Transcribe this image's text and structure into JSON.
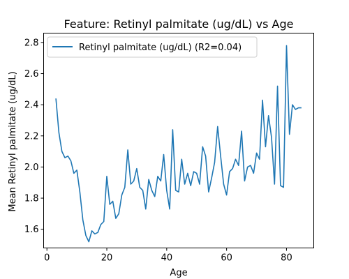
{
  "chart_data": {
    "type": "line",
    "title": "Feature: Retinyl palmitate (ug/dL) vs Age",
    "xlabel": "Age",
    "ylabel": "Mean Retinyl palmitate (ug/dL)",
    "xlim": [
      -1.1,
      89.1
    ],
    "ylim": [
      1.48,
      2.86
    ],
    "xticks": [
      0,
      20,
      40,
      60,
      80
    ],
    "yticks": [
      1.6,
      1.8,
      2.0,
      2.2,
      2.4,
      2.6,
      2.8
    ],
    "ytick_labels": [
      "1.6",
      "1.8",
      "2.0",
      "2.2",
      "2.4",
      "2.6",
      "2.8"
    ],
    "grid": false,
    "legend_position": "top-left",
    "color": "#1f77b4",
    "series": [
      {
        "name": "Retinyl palmitate (ug/dL) (R2=0.04)",
        "x": [
          3,
          4,
          5,
          6,
          7,
          8,
          9,
          10,
          11,
          12,
          13,
          14,
          15,
          16,
          17,
          18,
          19,
          20,
          21,
          22,
          23,
          24,
          25,
          26,
          27,
          28,
          29,
          30,
          31,
          32,
          33,
          34,
          35,
          36,
          37,
          38,
          39,
          40,
          41,
          42,
          43,
          44,
          45,
          46,
          47,
          48,
          49,
          50,
          51,
          52,
          53,
          54,
          55,
          56,
          57,
          58,
          59,
          60,
          61,
          62,
          63,
          64,
          65,
          66,
          67,
          68,
          69,
          70,
          71,
          72,
          73,
          74,
          75,
          76,
          77,
          78,
          79,
          80,
          81,
          82,
          83,
          84,
          85
        ],
        "y": [
          2.44,
          2.22,
          2.1,
          2.06,
          2.07,
          2.04,
          1.96,
          1.98,
          1.84,
          1.66,
          1.56,
          1.52,
          1.59,
          1.57,
          1.58,
          1.63,
          1.65,
          1.94,
          1.76,
          1.78,
          1.67,
          1.7,
          1.82,
          1.87,
          2.11,
          1.89,
          1.91,
          1.99,
          1.87,
          1.85,
          1.73,
          1.92,
          1.85,
          1.81,
          1.94,
          1.91,
          2.08,
          1.85,
          1.73,
          2.24,
          1.85,
          1.84,
          2.05,
          1.89,
          1.96,
          1.88,
          1.97,
          1.96,
          1.89,
          2.13,
          2.07,
          1.84,
          1.93,
          2.03,
          2.26,
          2.07,
          1.89,
          1.82,
          1.97,
          1.99,
          2.05,
          2.01,
          2.23,
          1.91,
          2.0,
          2.01,
          1.96,
          2.09,
          2.05,
          2.43,
          2.13,
          2.33,
          2.19,
          1.89,
          2.52,
          1.88,
          1.87,
          2.78,
          2.21,
          2.4,
          2.37,
          2.38,
          2.38
        ]
      }
    ]
  }
}
